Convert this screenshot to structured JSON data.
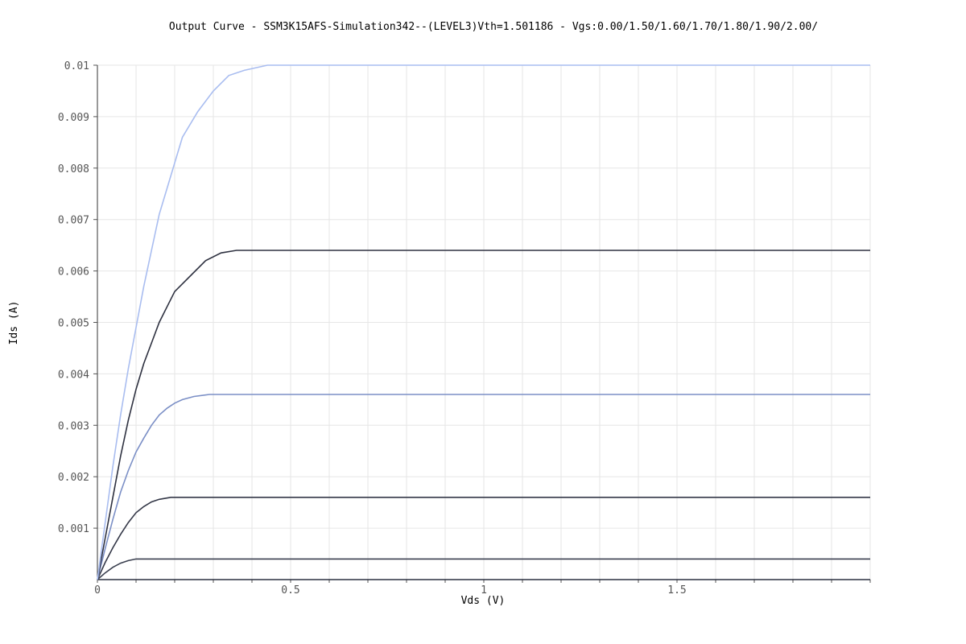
{
  "chart_data": {
    "type": "line",
    "title": "Output Curve - SSM3K15AFS-Simulation342--(LEVEL3)Vth=1.501186 - Vgs:0.00/1.50/1.60/1.70/1.80/1.90/2.00/",
    "xlabel": "Vds (V)",
    "ylabel": "Ids (A)",
    "xlim": [
      0,
      2.0
    ],
    "ylim": [
      0,
      0.01
    ],
    "grid": true,
    "legend": "none",
    "x_ticks": [
      {
        "value": 0,
        "label": "0"
      },
      {
        "value": 0.5,
        "label": "0.5"
      },
      {
        "value": 1,
        "label": "1"
      },
      {
        "value": 1.5,
        "label": "1.5"
      }
    ],
    "y_ticks": [
      {
        "value": 0.001,
        "label": "0.001"
      },
      {
        "value": 0.002,
        "label": "0.002"
      },
      {
        "value": 0.003,
        "label": "0.003"
      },
      {
        "value": 0.004,
        "label": "0.004"
      },
      {
        "value": 0.005,
        "label": "0.005"
      },
      {
        "value": 0.006,
        "label": "0.006"
      },
      {
        "value": 0.007,
        "label": "0.007"
      },
      {
        "value": 0.008,
        "label": "0.008"
      },
      {
        "value": 0.009,
        "label": "0.009"
      },
      {
        "value": 0.01,
        "label": "0.01"
      }
    ],
    "series": [
      {
        "color": "#2b3040",
        "points": [
          [
            0,
            0
          ],
          [
            2.0,
            0
          ]
        ]
      },
      {
        "color": "#3b4050",
        "points": [
          [
            0,
            0
          ],
          [
            0.02,
            0.00013
          ],
          [
            0.04,
            0.00024
          ],
          [
            0.06,
            0.00032
          ],
          [
            0.08,
            0.00037
          ],
          [
            0.1,
            0.0004
          ],
          [
            2.0,
            0.0004
          ]
        ]
      },
      {
        "color": "#343848",
        "points": [
          [
            0,
            0
          ],
          [
            0.02,
            0.00033
          ],
          [
            0.04,
            0.00062
          ],
          [
            0.06,
            0.00088
          ],
          [
            0.08,
            0.00111
          ],
          [
            0.1,
            0.0013
          ],
          [
            0.12,
            0.00142
          ],
          [
            0.14,
            0.00151
          ],
          [
            0.16,
            0.00156
          ],
          [
            0.19,
            0.0016
          ],
          [
            2.0,
            0.0016
          ]
        ]
      },
      {
        "color": "#7b8fc6",
        "points": [
          [
            0,
            0
          ],
          [
            0.02,
            0.0006
          ],
          [
            0.04,
            0.00117
          ],
          [
            0.06,
            0.0017
          ],
          [
            0.08,
            0.00212
          ],
          [
            0.1,
            0.00248
          ],
          [
            0.12,
            0.00275
          ],
          [
            0.14,
            0.003
          ],
          [
            0.16,
            0.0032
          ],
          [
            0.18,
            0.00333
          ],
          [
            0.2,
            0.00343
          ],
          [
            0.22,
            0.0035
          ],
          [
            0.25,
            0.00356
          ],
          [
            0.29,
            0.0036
          ],
          [
            2.0,
            0.0036
          ]
        ]
      },
      {
        "color": "#2e3140",
        "points": [
          [
            0,
            0
          ],
          [
            0.02,
            0.0008
          ],
          [
            0.04,
            0.0016
          ],
          [
            0.06,
            0.0024
          ],
          [
            0.08,
            0.0031
          ],
          [
            0.1,
            0.0037
          ],
          [
            0.12,
            0.0042
          ],
          [
            0.14,
            0.0046
          ],
          [
            0.16,
            0.005
          ],
          [
            0.18,
            0.0053
          ],
          [
            0.2,
            0.0056
          ],
          [
            0.24,
            0.0059
          ],
          [
            0.28,
            0.0062
          ],
          [
            0.32,
            0.00635
          ],
          [
            0.36,
            0.0064
          ],
          [
            0.4,
            0.0064
          ],
          [
            2.0,
            0.0064
          ]
        ]
      },
      {
        "color": "#a9bdf0",
        "points": [
          [
            0,
            0
          ],
          [
            0.02,
            0.0011
          ],
          [
            0.04,
            0.0022
          ],
          [
            0.06,
            0.0032
          ],
          [
            0.08,
            0.0041
          ],
          [
            0.1,
            0.0049
          ],
          [
            0.12,
            0.0057
          ],
          [
            0.14,
            0.0064
          ],
          [
            0.16,
            0.0071
          ],
          [
            0.18,
            0.0076
          ],
          [
            0.2,
            0.0081
          ],
          [
            0.22,
            0.0086
          ],
          [
            0.26,
            0.0091
          ],
          [
            0.3,
            0.0095
          ],
          [
            0.34,
            0.0098
          ],
          [
            0.38,
            0.0099
          ],
          [
            0.44,
            0.01
          ],
          [
            0.48,
            0.01
          ],
          [
            2.0,
            0.01
          ]
        ]
      }
    ]
  }
}
